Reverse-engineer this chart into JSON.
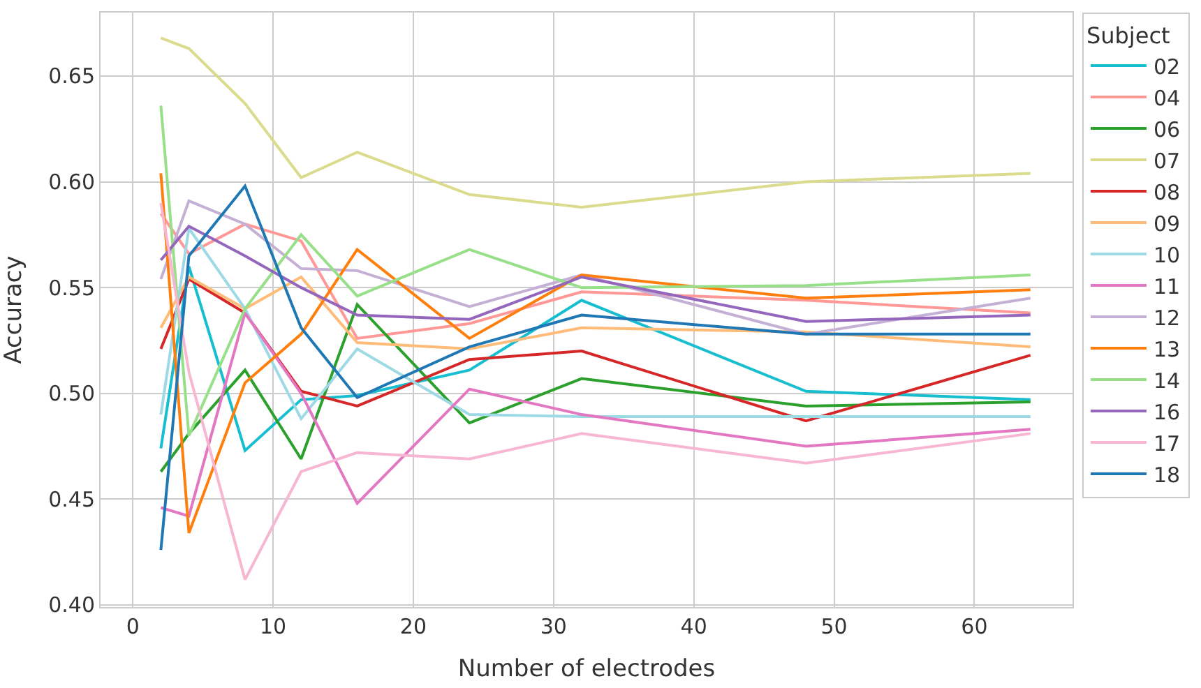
{
  "chart_data": {
    "type": "line",
    "xlabel": "Number of electrodes",
    "ylabel": "Accuracy",
    "legend_title": "Subject",
    "legend": "right",
    "grid": true,
    "marker": "none",
    "line_style": "solid",
    "x": [
      2,
      4,
      8,
      12,
      16,
      24,
      32,
      48,
      64
    ],
    "xlim": [
      -2.3,
      67
    ],
    "xticks": [
      0,
      10,
      20,
      30,
      40,
      50,
      60
    ],
    "ylim": [
      0.399,
      0.68
    ],
    "yticks": [
      {
        "value": 0.4,
        "label": "0.40"
      },
      {
        "value": 0.45,
        "label": "0.45"
      },
      {
        "value": 0.5,
        "label": "0.50"
      },
      {
        "value": 0.55,
        "label": "0.55"
      },
      {
        "value": 0.6,
        "label": "0.60"
      },
      {
        "value": 0.65,
        "label": "0.65"
      }
    ],
    "series": [
      {
        "name": "02",
        "color": "#17becf",
        "values": [
          0.474,
          0.56,
          0.473,
          0.497,
          0.499,
          0.511,
          0.544,
          0.501,
          0.497
        ]
      },
      {
        "name": "04",
        "color": "#ff9896",
        "values": [
          0.585,
          0.566,
          0.58,
          0.572,
          0.526,
          0.533,
          0.548,
          0.544,
          0.538
        ]
      },
      {
        "name": "06",
        "color": "#2ca02c",
        "values": [
          0.463,
          0.481,
          0.511,
          0.469,
          0.542,
          0.486,
          0.507,
          0.494,
          0.496
        ]
      },
      {
        "name": "07",
        "color": "#dbdb8d",
        "values": [
          0.668,
          0.663,
          0.637,
          0.602,
          0.614,
          0.594,
          0.588,
          0.6,
          0.604
        ]
      },
      {
        "name": "08",
        "color": "#d62728",
        "values": [
          0.521,
          0.554,
          0.538,
          0.501,
          0.494,
          0.516,
          0.52,
          0.487,
          0.518
        ]
      },
      {
        "name": "09",
        "color": "#ffbb78",
        "values": [
          0.531,
          0.555,
          0.54,
          0.555,
          0.524,
          0.521,
          0.531,
          0.529,
          0.522
        ]
      },
      {
        "name": "10",
        "color": "#9edae5",
        "values": [
          0.49,
          0.578,
          0.54,
          0.488,
          0.521,
          0.49,
          0.489,
          0.489,
          0.489
        ]
      },
      {
        "name": "11",
        "color": "#e377c2",
        "values": [
          0.446,
          0.442,
          0.538,
          0.5,
          0.448,
          0.502,
          0.49,
          0.475,
          0.483
        ]
      },
      {
        "name": "12",
        "color": "#c5b0d5",
        "values": [
          0.554,
          0.591,
          0.58,
          0.559,
          0.558,
          0.541,
          0.556,
          0.528,
          0.545
        ]
      },
      {
        "name": "13",
        "color": "#ff7f0e",
        "values": [
          0.604,
          0.434,
          0.505,
          0.528,
          0.568,
          0.526,
          0.556,
          0.545,
          0.549
        ]
      },
      {
        "name": "14",
        "color": "#98df8a",
        "values": [
          0.636,
          0.48,
          0.54,
          0.575,
          0.546,
          0.568,
          0.55,
          0.551,
          0.556
        ]
      },
      {
        "name": "16",
        "color": "#9467bd",
        "values": [
          0.563,
          0.579,
          0.565,
          0.55,
          0.537,
          0.535,
          0.555,
          0.534,
          0.537
        ]
      },
      {
        "name": "17",
        "color": "#f7b6d2",
        "values": [
          0.59,
          0.51,
          0.412,
          0.463,
          0.472,
          0.469,
          0.481,
          0.467,
          0.481
        ]
      },
      {
        "name": "18",
        "color": "#1f77b4",
        "values": [
          0.426,
          0.565,
          0.598,
          0.531,
          0.498,
          0.522,
          0.537,
          0.528,
          0.528
        ]
      }
    ]
  }
}
